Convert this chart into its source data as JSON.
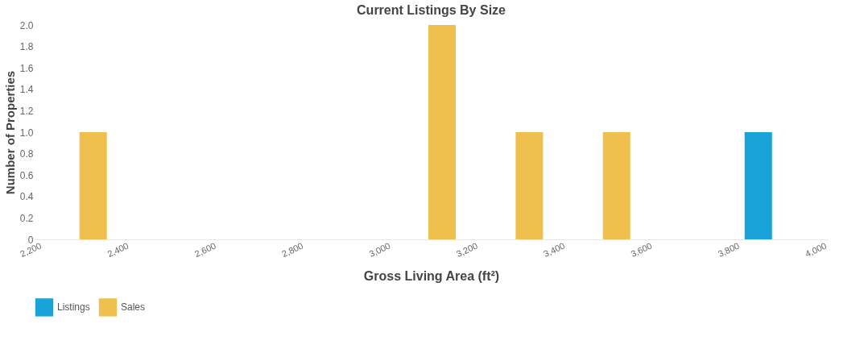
{
  "chart_data": {
    "type": "bar",
    "title": "Current Listings By Size",
    "xlabel": "Gross Living Area (ft²)",
    "ylabel": "Number of Properties",
    "series": [
      {
        "name": "Listings",
        "color": "#1aa3d9",
        "x": [
          3850
        ],
        "values": [
          1
        ]
      },
      {
        "name": "Sales",
        "color": "#f0c04e",
        "x": [
          2325,
          3125,
          3325,
          3525
        ],
        "values": [
          1,
          2,
          1,
          1
        ]
      }
    ],
    "xlim": [
      2200,
      4000
    ],
    "xticks": [
      {
        "value": 2200,
        "label": "2,200"
      },
      {
        "value": 2400,
        "label": "2,400"
      },
      {
        "value": 2600,
        "label": "2,600"
      },
      {
        "value": 2800,
        "label": "2,800"
      },
      {
        "value": 3000,
        "label": "3,000"
      },
      {
        "value": 3200,
        "label": "3,200"
      },
      {
        "value": 3400,
        "label": "3,400"
      },
      {
        "value": 3600,
        "label": "3,600"
      },
      {
        "value": 3800,
        "label": "3,800"
      },
      {
        "value": 4000,
        "label": "4,000"
      }
    ],
    "ylim": [
      0,
      2
    ],
    "yticks": [
      0,
      0.2,
      0.4,
      0.6,
      0.8,
      {
        "value": 1,
        "label": "1.0"
      },
      1.2,
      1.4,
      1.6,
      1.8,
      {
        "value": 2,
        "label": "2.0"
      }
    ],
    "grid": false,
    "legend": "bottom"
  }
}
